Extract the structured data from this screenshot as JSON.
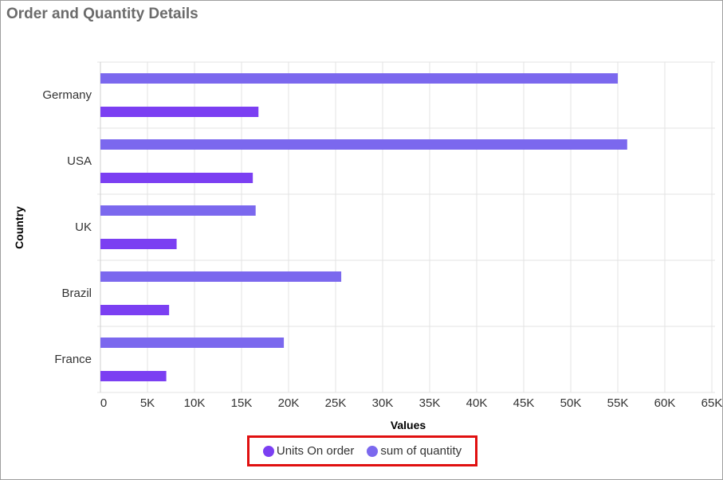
{
  "title": "Order and Quantity Details",
  "chart_data": {
    "type": "bar",
    "orientation": "horizontal",
    "categories": [
      "Germany",
      "USA",
      "UK",
      "Brazil",
      "France"
    ],
    "series": [
      {
        "name": "sum of quantity",
        "values": [
          55000,
          56000,
          16500,
          25600,
          19500
        ],
        "color": "#7b68ee"
      },
      {
        "name": "Units On order",
        "values": [
          16800,
          16200,
          8100,
          7300,
          7000
        ],
        "color": "#7b3ff2"
      }
    ],
    "x_ticks": [
      "0",
      "5K",
      "10K",
      "15K",
      "20K",
      "25K",
      "30K",
      "35K",
      "40K",
      "45K",
      "50K",
      "55K",
      "60K",
      "65K"
    ],
    "xlim": [
      0,
      65000
    ],
    "xlabel": "Values",
    "ylabel": "Country",
    "grid": true
  },
  "legend": {
    "items": [
      {
        "label": "Units On order",
        "color": "#7b3ff2"
      },
      {
        "label": "sum of quantity",
        "color": "#7b68ee"
      }
    ],
    "placement": "bottom"
  }
}
